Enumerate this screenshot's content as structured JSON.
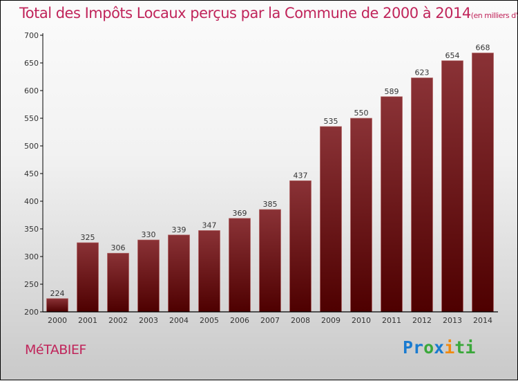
{
  "chart_data": {
    "type": "bar",
    "title": "Total des Impôts Locaux perçus par la Commune de 2000 à 2014",
    "subtitle": "(en milliers d'€)",
    "categories": [
      "2000",
      "2001",
      "2002",
      "2003",
      "2004",
      "2005",
      "2006",
      "2007",
      "2008",
      "2009",
      "2010",
      "2011",
      "2012",
      "2013",
      "2014"
    ],
    "values": [
      224,
      325,
      306,
      330,
      339,
      347,
      369,
      385,
      437,
      535,
      550,
      589,
      623,
      654,
      668
    ],
    "ylim": [
      200,
      700
    ],
    "yticks": [
      200,
      250,
      300,
      350,
      400,
      450,
      500,
      550,
      600,
      650,
      700
    ],
    "xlabel": "",
    "ylabel": "",
    "grid": false,
    "bar_color": "#7a1a1e"
  },
  "commune": "MéTABIEF",
  "logo": {
    "parts": [
      {
        "t": "Pr",
        "c": "#1a7bd0"
      },
      {
        "t": "o",
        "c": "#3aa83a"
      },
      {
        "t": "x",
        "c": "#1a7bd0"
      },
      {
        "t": "i",
        "c": "#f08a10"
      },
      {
        "t": "ti",
        "c": "#3aa83a"
      }
    ],
    "text": "Proxiti"
  }
}
